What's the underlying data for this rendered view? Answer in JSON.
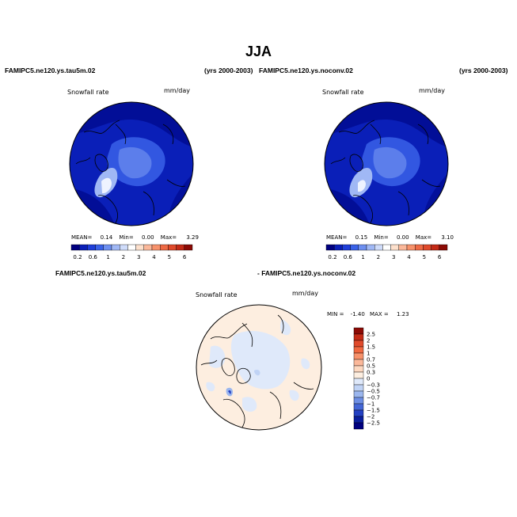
{
  "page": {
    "title": "JJA"
  },
  "panels": [
    {
      "case_name": "FAMIPC5.ne120.ys.tau5m.02",
      "years": "(yrs 2000-2003)",
      "variable": "Snowfall rate",
      "units": "mm/day",
      "stats": {
        "mean_label": "MEAN=",
        "mean": "0.14",
        "min_label": "Min=",
        "min": "0.00",
        "max_label": "Max=",
        "max": "3.29"
      }
    },
    {
      "case_name": "FAMIPC5.ne120.ys.noconv.02",
      "years": "(yrs 2000-2003)",
      "variable": "Snowfall rate",
      "units": "mm/day",
      "stats": {
        "mean_label": "MEAN=",
        "mean": "0.15",
        "min_label": "Min=",
        "min": "0.00",
        "max_label": "Max=",
        "max": "3.10"
      }
    }
  ],
  "field_colorbar": {
    "labels": [
      "0.2",
      "0.6",
      "1",
      "2",
      "3",
      "4",
      "5",
      "6"
    ],
    "colors": [
      "#000080",
      "#0a1fb8",
      "#1f3fd9",
      "#3a62e8",
      "#6d8ff0",
      "#a0b8f5",
      "#cfdcfa",
      "#ffffff",
      "#fde0cc",
      "#fbb89a",
      "#f7926b",
      "#ee6a45",
      "#e04a2b",
      "#c42a16",
      "#8c0a05"
    ]
  },
  "difference": {
    "left_title": "FAMIPC5.ne120.ys.tau5m.02",
    "right_title": "- FAMIPC5.ne120.ys.noconv.02",
    "variable": "Snowfall rate",
    "units": "mm/day",
    "min_label": "MIN =",
    "min": "-1.40",
    "max_label": "MAX =",
    "max": "1.23",
    "colorbar_labels": [
      "2.5",
      "2",
      "1.5",
      "1",
      "0.7",
      "0.5",
      "0.3",
      "0",
      "−0.3",
      "−0.5",
      "−0.7",
      "−1",
      "−1.5",
      "−2",
      "−2.5"
    ],
    "colorbar_colors": [
      "#8c0a05",
      "#c42a16",
      "#e04a2b",
      "#f06840",
      "#f7926b",
      "#fbb89a",
      "#fdd8c0",
      "#fdeee0",
      "#dfe9fa",
      "#c0d3f5",
      "#9bb6ee",
      "#6e8fe4",
      "#4466d6",
      "#2340c2",
      "#0a1e9e",
      "#000080"
    ]
  }
}
